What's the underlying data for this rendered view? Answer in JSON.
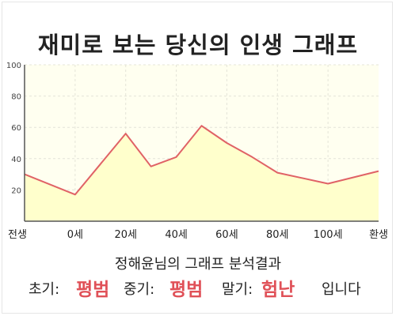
{
  "title": "재미로 보는 당신의 인생 그래프",
  "summary": "정해윤님의 그래프 분석결과",
  "result": {
    "early_label": "초기:",
    "early_value": "평범",
    "mid_label": "중기:",
    "mid_value": "평범",
    "late_label": "말기:",
    "late_value": "험난",
    "suffix": "입니다"
  },
  "chart_data": {
    "type": "area",
    "title": "",
    "xlabel": "",
    "ylabel": "",
    "categories": [
      "전생",
      "0세",
      "20세",
      "40세",
      "60세",
      "80세",
      "100세",
      "환생"
    ],
    "x": [
      -20,
      0,
      20,
      30,
      40,
      50,
      60,
      70,
      80,
      100,
      120
    ],
    "x_tick_values": [
      -20,
      0,
      20,
      40,
      60,
      80,
      100,
      120
    ],
    "y": [
      30,
      17,
      56,
      35,
      41,
      61,
      50,
      41,
      31,
      24,
      32
    ],
    "ylim": [
      0,
      100
    ],
    "yticks": [
      20,
      40,
      60,
      80,
      100
    ],
    "grid": true,
    "colors": {
      "line": "#e06266",
      "fill": "#ffffcc",
      "plot_bg": "#fffff0",
      "grid": "#e4e4d8"
    }
  }
}
